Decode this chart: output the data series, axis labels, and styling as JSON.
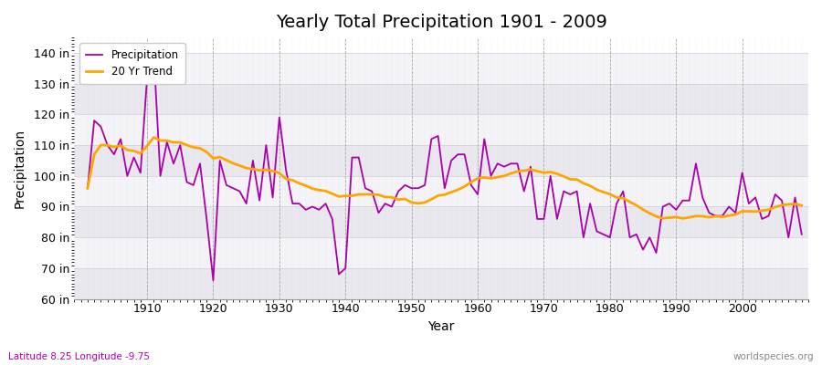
{
  "title": "Yearly Total Precipitation 1901 - 2009",
  "xlabel": "Year",
  "ylabel": "Precipitation",
  "subtitle_left": "Latitude 8.25 Longitude -9.75",
  "subtitle_right": "worldspecies.org",
  "precip_label": "Precipitation",
  "trend_label": "20 Yr Trend",
  "precip_color": "#aa00aa",
  "trend_color": "#ffa500",
  "ylim_min": 60,
  "ylim_max": 145,
  "yticks": [
    60,
    70,
    80,
    90,
    100,
    110,
    120,
    130,
    140
  ],
  "fig_bg_color": "#f0f0f5",
  "plot_bg_color": "#f0f0f5",
  "subtitle_color": "#aa00aa",
  "subtitle_right_color": "#888888",
  "years": [
    1901,
    1902,
    1903,
    1904,
    1905,
    1906,
    1907,
    1908,
    1909,
    1910,
    1911,
    1912,
    1913,
    1914,
    1915,
    1916,
    1917,
    1918,
    1919,
    1920,
    1921,
    1922,
    1923,
    1924,
    1925,
    1926,
    1927,
    1928,
    1929,
    1930,
    1931,
    1932,
    1933,
    1934,
    1935,
    1936,
    1937,
    1938,
    1939,
    1940,
    1941,
    1942,
    1943,
    1944,
    1945,
    1946,
    1947,
    1948,
    1949,
    1950,
    1951,
    1952,
    1953,
    1954,
    1955,
    1956,
    1957,
    1958,
    1959,
    1960,
    1961,
    1962,
    1963,
    1964,
    1965,
    1966,
    1967,
    1968,
    1969,
    1970,
    1971,
    1972,
    1973,
    1974,
    1975,
    1976,
    1977,
    1978,
    1979,
    1980,
    1981,
    1982,
    1983,
    1984,
    1985,
    1986,
    1987,
    1988,
    1989,
    1990,
    1991,
    1992,
    1993,
    1994,
    1995,
    1996,
    1997,
    1998,
    1999,
    2000,
    2001,
    2002,
    2003,
    2004,
    2005,
    2006,
    2007,
    2008,
    2009
  ],
  "precip": [
    96,
    118,
    116,
    110,
    107,
    112,
    100,
    106,
    101,
    132,
    140,
    100,
    111,
    104,
    110,
    98,
    97,
    104,
    86,
    66,
    105,
    97,
    96,
    95,
    91,
    105,
    92,
    110,
    93,
    119,
    102,
    91,
    91,
    89,
    90,
    89,
    91,
    86,
    68,
    70,
    106,
    106,
    96,
    95,
    88,
    91,
    90,
    95,
    97,
    96,
    96,
    97,
    112,
    113,
    96,
    105,
    107,
    107,
    97,
    94,
    112,
    100,
    104,
    103,
    104,
    104,
    95,
    103,
    86,
    86,
    100,
    86,
    95,
    94,
    95,
    80,
    91,
    82,
    81,
    80,
    91,
    95,
    80,
    81,
    76,
    80,
    75,
    90,
    91,
    89,
    92,
    92,
    104,
    93,
    88,
    87,
    87,
    90,
    88,
    101,
    91,
    93,
    86,
    87,
    94,
    92,
    80,
    93,
    81
  ]
}
